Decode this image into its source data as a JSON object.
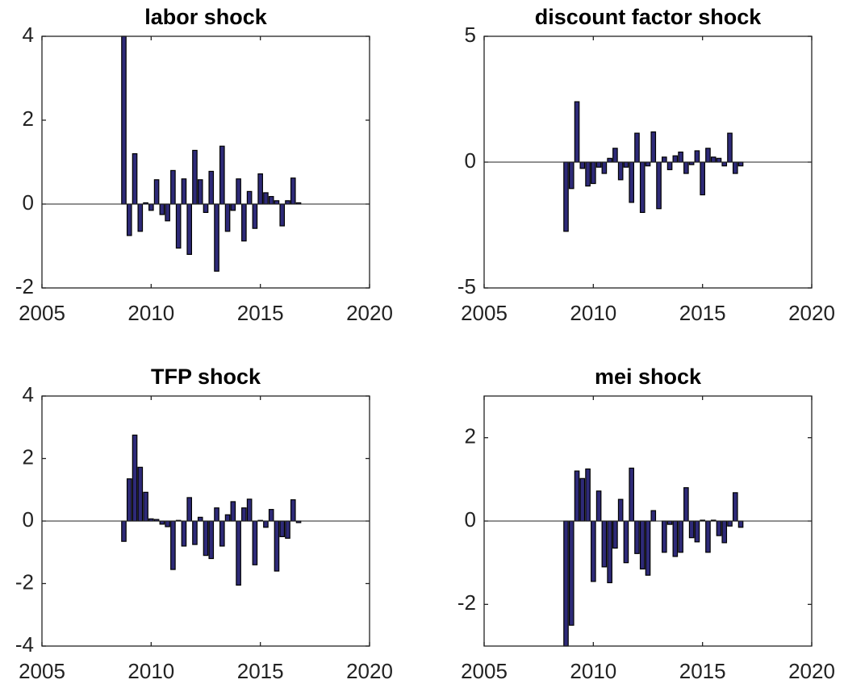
{
  "chart_data": [
    {
      "type": "bar",
      "title": "labor shock",
      "color": "#2e2a78",
      "x": [
        2008.75,
        2009,
        2009.25,
        2009.5,
        2009.75,
        2010,
        2010.25,
        2010.5,
        2010.75,
        2011,
        2011.25,
        2011.5,
        2011.75,
        2012,
        2012.25,
        2012.5,
        2012.75,
        2013,
        2013.25,
        2013.5,
        2013.75,
        2014,
        2014.25,
        2014.5,
        2014.75,
        2015,
        2015.25,
        2015.5,
        2015.75,
        2016,
        2016.25,
        2016.5,
        2016.75
      ],
      "values": [
        4.0,
        -0.75,
        1.2,
        -0.65,
        0.03,
        -0.15,
        0.58,
        -0.25,
        -0.4,
        0.8,
        -1.05,
        0.6,
        -1.2,
        1.28,
        0.58,
        -0.2,
        0.78,
        -1.6,
        1.38,
        -0.65,
        -0.15,
        0.6,
        -0.88,
        0.3,
        -0.58,
        0.72,
        0.27,
        0.18,
        0.08,
        -0.52,
        0.08,
        0.62,
        0.03
      ],
      "xlim": [
        2005,
        2020
      ],
      "xticks": [
        2005,
        2010,
        2015,
        2020
      ],
      "ylim": [
        -2,
        4
      ],
      "yticks": [
        -2,
        0,
        2,
        4
      ]
    },
    {
      "type": "bar",
      "title": "discount factor shock",
      "color": "#2e2a78",
      "x": [
        2008.75,
        2009,
        2009.25,
        2009.5,
        2009.75,
        2010,
        2010.25,
        2010.5,
        2010.75,
        2011,
        2011.25,
        2011.5,
        2011.75,
        2012,
        2012.25,
        2012.5,
        2012.75,
        2013,
        2013.25,
        2013.5,
        2013.75,
        2014,
        2014.25,
        2014.5,
        2014.75,
        2015,
        2015.25,
        2015.5,
        2015.75,
        2016,
        2016.25,
        2016.5,
        2016.75
      ],
      "values": [
        -2.75,
        -1.05,
        2.4,
        -0.25,
        -0.95,
        -0.85,
        -0.2,
        -0.45,
        0.15,
        0.55,
        -0.7,
        -0.2,
        -1.6,
        1.15,
        -2.0,
        -0.15,
        1.2,
        -1.85,
        0.2,
        -0.3,
        0.25,
        0.4,
        -0.45,
        -0.1,
        0.45,
        -1.3,
        0.55,
        0.2,
        0.15,
        -0.15,
        1.15,
        -0.45,
        -0.15
      ],
      "xlim": [
        2005,
        2020
      ],
      "xticks": [
        2005,
        2010,
        2015,
        2020
      ],
      "ylim": [
        -5,
        5
      ],
      "yticks": [
        -5,
        0,
        5
      ]
    },
    {
      "type": "bar",
      "title": "TFP shock",
      "color": "#2e2a78",
      "x": [
        2008.75,
        2009,
        2009.25,
        2009.5,
        2009.75,
        2010,
        2010.25,
        2010.5,
        2010.75,
        2011,
        2011.25,
        2011.5,
        2011.75,
        2012,
        2012.25,
        2012.5,
        2012.75,
        2013,
        2013.25,
        2013.5,
        2013.75,
        2014,
        2014.25,
        2014.5,
        2014.75,
        2015,
        2015.25,
        2015.5,
        2015.75,
        2016,
        2016.25,
        2016.5,
        2016.75
      ],
      "values": [
        -0.65,
        1.35,
        2.75,
        1.72,
        0.92,
        0.07,
        0.05,
        -0.1,
        -0.18,
        -1.55,
        0.02,
        -0.8,
        0.75,
        -0.75,
        0.12,
        -1.1,
        -1.2,
        0.42,
        -0.8,
        0.2,
        0.62,
        -2.05,
        0.42,
        0.7,
        -1.4,
        0.02,
        -0.2,
        0.37,
        -1.6,
        -0.5,
        -0.55,
        0.68,
        -0.05
      ],
      "xlim": [
        2005,
        2020
      ],
      "xticks": [
        2005,
        2010,
        2015,
        2020
      ],
      "ylim": [
        -4,
        4
      ],
      "yticks": [
        -4,
        -2,
        0,
        2,
        4
      ]
    },
    {
      "type": "bar",
      "title": "mei shock",
      "color": "#2e2a78",
      "x": [
        2008.75,
        2009,
        2009.25,
        2009.5,
        2009.75,
        2010,
        2010.25,
        2010.5,
        2010.75,
        2011,
        2011.25,
        2011.5,
        2011.75,
        2012,
        2012.25,
        2012.5,
        2012.75,
        2013,
        2013.25,
        2013.5,
        2013.75,
        2014,
        2014.25,
        2014.5,
        2014.75,
        2015,
        2015.25,
        2015.5,
        2015.75,
        2016,
        2016.25,
        2016.5,
        2016.75
      ],
      "values": [
        -3.0,
        -2.5,
        1.2,
        1.02,
        1.25,
        -1.45,
        0.72,
        -1.1,
        -1.48,
        -0.65,
        0.52,
        -1.0,
        1.27,
        -0.78,
        -1.15,
        -1.3,
        0.25,
        0.0,
        -0.75,
        -0.08,
        -0.85,
        -0.75,
        0.8,
        -0.4,
        -0.5,
        0.02,
        -0.75,
        0.02,
        -0.35,
        -0.52,
        -0.12,
        0.68,
        -0.15
      ],
      "xlim": [
        2005,
        2020
      ],
      "xticks": [
        2005,
        2010,
        2015,
        2020
      ],
      "ylim": [
        -3,
        3
      ],
      "yticks": [
        -2,
        0,
        2
      ]
    }
  ]
}
